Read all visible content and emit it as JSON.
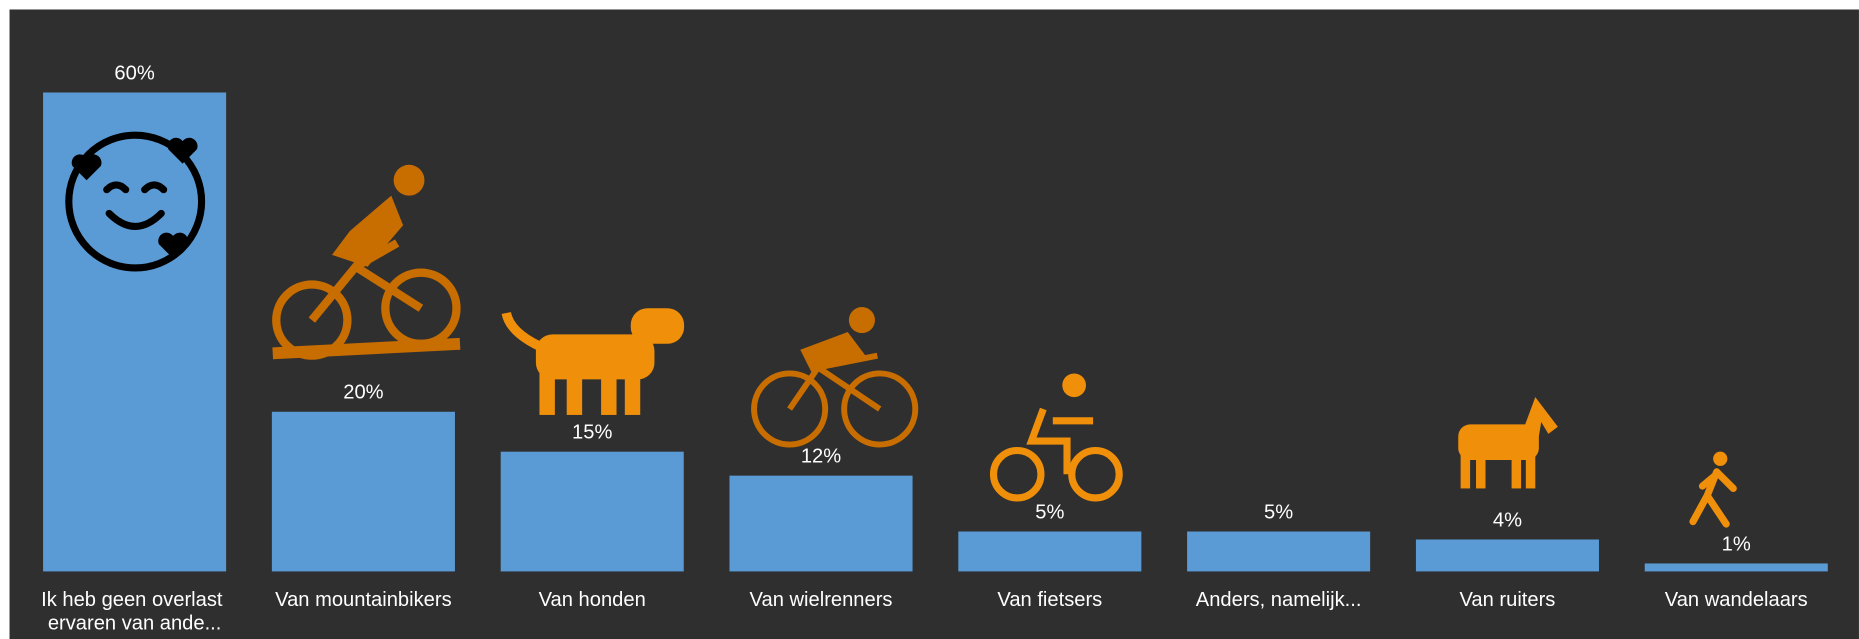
{
  "chart_data": {
    "type": "bar",
    "categories": [
      "Ik heb geen overlast ervaren van ande...",
      "Van mountainbikers",
      "Van honden",
      "Van wielrenners",
      "Van fietsers",
      "Anders, namelijk...",
      "Van ruiters",
      "Van wandelaars"
    ],
    "values": [
      60,
      20,
      15,
      12,
      5,
      5,
      4,
      1
    ],
    "value_labels": [
      "60%",
      "20%",
      "15%",
      "12%",
      "5%",
      "5%",
      "4%",
      "1%"
    ],
    "color": "#5b9bd5"
  }
}
